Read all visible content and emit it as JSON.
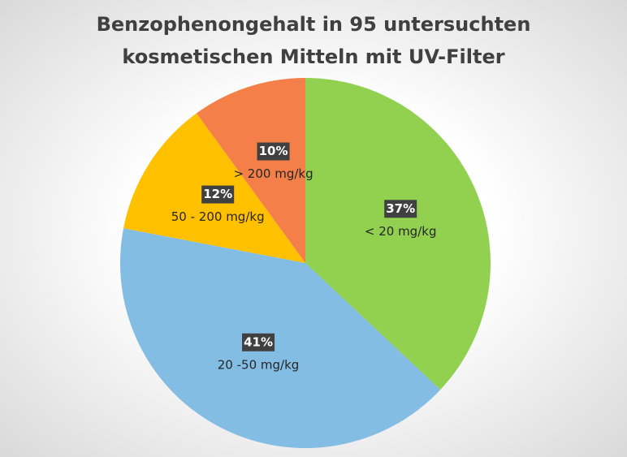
{
  "chart_data": {
    "type": "pie",
    "title": "Benzophenongehalt in 95 untersuchten kosmetischen Mitteln mit UV-Filter",
    "categories": [
      "< 20 mg/kg",
      "20 -50 mg/kg",
      "50 - 200 mg/kg",
      "> 200 mg/kg"
    ],
    "values": [
      37,
      41,
      12,
      10
    ],
    "value_labels": [
      "37%",
      "41%",
      "12%",
      "10%"
    ],
    "colors": [
      "#92d050",
      "#83bde3",
      "#ffc000",
      "#f47f48"
    ]
  }
}
